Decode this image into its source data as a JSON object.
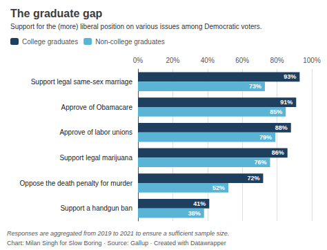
{
  "chart_data": {
    "type": "bar",
    "orientation": "horizontal",
    "title": "The graduate gap",
    "subtitle": "Support for the (more) liberal position on various issues among Democratic voters.",
    "categories": [
      "Support legal same-sex marriage",
      "Approve of Obamacare",
      "Approve of labor unions",
      "Support legal marijuana",
      "Oppose the death penalty for murder",
      "Support a handgun ban"
    ],
    "series": [
      {
        "name": "College graduates",
        "color": "#1f3f5f",
        "values": [
          93,
          91,
          88,
          86,
          72,
          41
        ],
        "value_labels": [
          "93%",
          "91%",
          "88%",
          "86%",
          "72%",
          "41%"
        ]
      },
      {
        "name": "Non-college graduates",
        "color": "#5ab4d6",
        "values": [
          73,
          85,
          79,
          76,
          52,
          38
        ],
        "value_labels": [
          "73%",
          "85%",
          "79%",
          "76%",
          "52%",
          "38%"
        ]
      }
    ],
    "xlim": [
      0,
      100
    ],
    "xticks": [
      {
        "value": 0,
        "label": "0%"
      },
      {
        "value": 20,
        "label": "20%"
      },
      {
        "value": 40,
        "label": "40%"
      },
      {
        "value": 60,
        "label": "60%"
      },
      {
        "value": 80,
        "label": "80%"
      },
      {
        "value": 100,
        "label": "100%"
      }
    ],
    "grid": true,
    "legend": "upper left",
    "data_labels": true,
    "annotations": [
      "Responses are aggregated from 2019 to 2021 to ensure a sufficient sample size.",
      "Chart: Milan Singh for Slow Boring · Source: Gallup · Created with Datawrapper"
    ]
  }
}
